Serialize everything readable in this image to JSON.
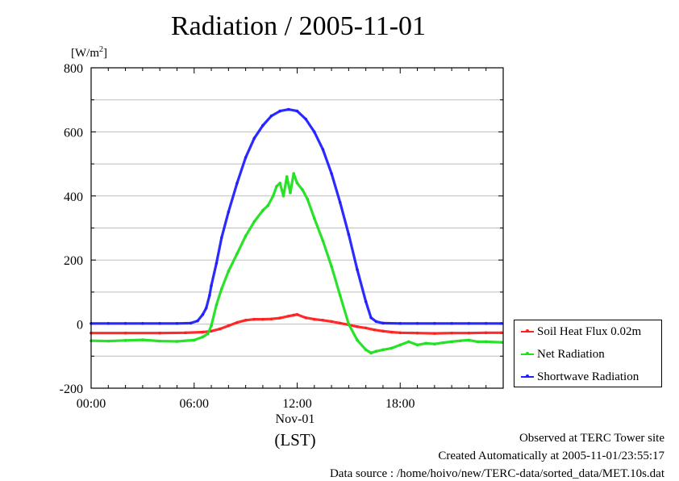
{
  "title": "Radiation / 2005-11-01",
  "y_unit": "[W/m",
  "y_unit_sup": "2",
  "y_unit_close": "]",
  "x_date_label": "Nov-01",
  "x_unit_label": "(LST)",
  "footer": {
    "line1": "Observed at TERC Tower site",
    "line2": "Created Automatically at 2005-11-01/23:55:17",
    "line3": "Data source : /home/hoivo/new/TERC-data/sorted_data/MET.10s.dat"
  },
  "colors": {
    "soil": "#ff2020",
    "net": "#20e020",
    "shortwave": "#2020ff",
    "grid": "#bdbdbd"
  },
  "chart_data": {
    "type": "line",
    "title": "Radiation / 2005-11-01",
    "ylabel": "[W/m2]",
    "xlabel": "(LST)",
    "xlim": [
      0,
      24
    ],
    "ylim": [
      -200,
      800
    ],
    "y_ticks": [
      -200,
      0,
      200,
      400,
      600,
      800
    ],
    "y_tick_labels": [
      "-200",
      "0",
      "200",
      "400",
      "600",
      "800"
    ],
    "x_ticks": [
      0,
      6,
      12,
      18
    ],
    "x_tick_labels": [
      "00:00",
      "06:00",
      "12:00",
      "18:00"
    ],
    "grid": true,
    "legend_position": "right",
    "series": [
      {
        "name": "Soil Heat Flux 0.02m",
        "color": "#ff2020",
        "x": [
          0,
          2,
          4,
          5.5,
          6.5,
          7.0,
          7.5,
          8.0,
          8.5,
          9.0,
          9.5,
          10.0,
          10.5,
          11.0,
          11.5,
          11.8,
          12.0,
          12.5,
          13.0,
          13.5,
          14.0,
          14.5,
          15.0,
          15.5,
          16.0,
          16.5,
          17.0,
          17.5,
          18.0,
          19.0,
          20.0,
          21.0,
          22.0,
          23.0,
          23.9
        ],
        "y": [
          -28,
          -28,
          -28,
          -27,
          -25,
          -22,
          -15,
          -5,
          5,
          12,
          15,
          15,
          16,
          19,
          25,
          28,
          30,
          20,
          15,
          12,
          8,
          3,
          -2,
          -8,
          -12,
          -18,
          -22,
          -25,
          -27,
          -28,
          -29,
          -28,
          -28,
          -27,
          -27
        ]
      },
      {
        "name": "Net Radiation",
        "color": "#20e020",
        "x": [
          0,
          1,
          2,
          3,
          4,
          5,
          6,
          6.5,
          6.8,
          7.0,
          7.3,
          7.6,
          8.0,
          8.5,
          9.0,
          9.5,
          10.0,
          10.3,
          10.6,
          10.8,
          11.0,
          11.2,
          11.4,
          11.6,
          11.8,
          12.0,
          12.3,
          12.6,
          13.0,
          13.5,
          14.0,
          14.5,
          15.0,
          15.5,
          16.0,
          16.3,
          16.6,
          17.0,
          17.5,
          18.0,
          18.5,
          19.0,
          19.5,
          20.0,
          20.5,
          21.0,
          21.5,
          22.0,
          22.5,
          23.0,
          23.9
        ],
        "y": [
          -52,
          -53,
          -51,
          -49,
          -53,
          -54,
          -50,
          -40,
          -30,
          -5,
          60,
          110,
          165,
          220,
          275,
          320,
          355,
          370,
          400,
          430,
          440,
          400,
          460,
          410,
          470,
          440,
          420,
          390,
          330,
          260,
          180,
          90,
          0,
          -50,
          -80,
          -90,
          -85,
          -80,
          -75,
          -65,
          -55,
          -65,
          -60,
          -62,
          -58,
          -55,
          -52,
          -50,
          -55,
          -55,
          -57
        ]
      },
      {
        "name": "Shortwave Radiation",
        "color": "#2020ff",
        "x": [
          0,
          1,
          2,
          3,
          4,
          5,
          5.8,
          6.2,
          6.5,
          6.7,
          6.9,
          7.0,
          7.3,
          7.6,
          8.0,
          8.5,
          9.0,
          9.5,
          10.0,
          10.5,
          11.0,
          11.5,
          12.0,
          12.5,
          13.0,
          13.5,
          14.0,
          14.5,
          15.0,
          15.5,
          16.0,
          16.3,
          16.6,
          17.0,
          18.0,
          19.0,
          20.0,
          21.0,
          22.0,
          23.0,
          23.9
        ],
        "y": [
          2,
          2,
          2,
          2,
          2,
          2,
          3,
          10,
          30,
          50,
          90,
          120,
          190,
          270,
          350,
          440,
          520,
          580,
          620,
          650,
          665,
          670,
          665,
          640,
          600,
          545,
          470,
          380,
          280,
          170,
          70,
          20,
          8,
          3,
          2,
          2,
          2,
          2,
          2,
          2,
          2
        ]
      }
    ]
  }
}
